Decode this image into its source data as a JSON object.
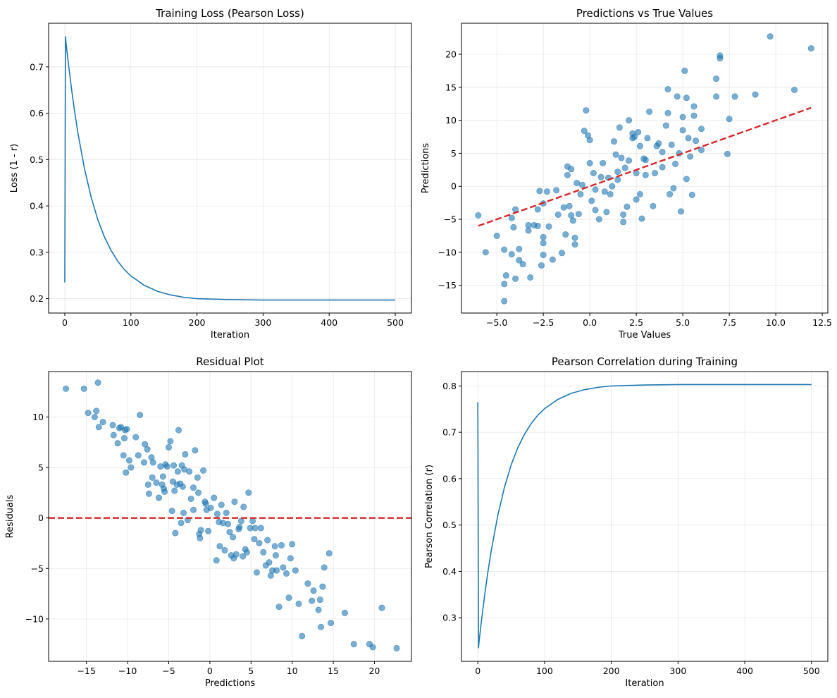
{
  "chart_data": [
    {
      "type": "line",
      "title": "Training Loss (Pearson Loss)",
      "xlabel": "Iteration",
      "ylabel": "Loss (1 - r)",
      "xlim": [
        -24.5,
        524.5
      ],
      "ylim": [
        0.169,
        0.794
      ],
      "xticks": [
        0,
        100,
        200,
        300,
        400,
        500
      ],
      "yticks": [
        0.2,
        0.3,
        0.4,
        0.5,
        0.6,
        0.7
      ],
      "xtick_labels": [
        "0",
        "100",
        "200",
        "300",
        "400",
        "500"
      ],
      "ytick_labels": [
        "0.2",
        "0.3",
        "0.4",
        "0.5",
        "0.6",
        "0.7"
      ],
      "grid": true,
      "series": [
        {
          "color": "#1f77b4",
          "x": [
            0,
            1,
            2,
            5,
            10,
            15,
            20,
            30,
            40,
            50,
            60,
            70,
            80,
            90,
            100,
            120,
            140,
            160,
            180,
            200,
            250,
            300,
            350,
            400,
            450,
            500
          ],
          "y": [
            0.235,
            0.765,
            0.75,
            0.712,
            0.654,
            0.602,
            0.556,
            0.479,
            0.418,
            0.37,
            0.333,
            0.304,
            0.281,
            0.263,
            0.249,
            0.229,
            0.216,
            0.208,
            0.203,
            0.2,
            0.198,
            0.197,
            0.197,
            0.197,
            0.197,
            0.197
          ]
        }
      ]
    },
    {
      "type": "scatter",
      "title": "Predictions vs True Values",
      "xlabel": "True Values",
      "ylabel": "Predictions",
      "xlim": [
        -6.9,
        12.8
      ],
      "ylim": [
        -19.2,
        24.7
      ],
      "xticks": [
        -5.0,
        -2.5,
        0.0,
        2.5,
        5.0,
        7.5,
        10.0,
        12.5
      ],
      "yticks": [
        -15,
        -10,
        -5,
        0,
        5,
        10,
        15,
        20
      ],
      "xtick_labels": [
        "−5.0",
        "−2.5",
        "0.0",
        "2.5",
        "5.0",
        "7.5",
        "10.0",
        "12.5"
      ],
      "ytick_labels": [
        "−15",
        "−10",
        "−5",
        "0",
        "5",
        "10",
        "15",
        "20"
      ],
      "grid": true,
      "point_color": "#1f77b4",
      "reference_line": {
        "x": [
          -6.0,
          11.9
        ],
        "y": [
          -6.0,
          11.9
        ],
        "color": "#d62728",
        "style": "dashed"
      },
      "points": [
        [
          -6.0,
          -4.4
        ],
        [
          -5.6,
          -10.0
        ],
        [
          -5.0,
          -7.5
        ],
        [
          -4.6,
          -9.6
        ],
        [
          -4.5,
          -13.5
        ],
        [
          -4.6,
          -14.8
        ],
        [
          -4.6,
          -17.4
        ],
        [
          -4.2,
          -10.3
        ],
        [
          -4.1,
          -6.2
        ],
        [
          -4.2,
          -4.8
        ],
        [
          -4.0,
          -3.5
        ],
        [
          -4.0,
          -14.0
        ],
        [
          -3.8,
          -9.5
        ],
        [
          -3.8,
          -11.2
        ],
        [
          -3.6,
          -11.8
        ],
        [
          -3.3,
          -6.7
        ],
        [
          -3.3,
          -5.9
        ],
        [
          -3.2,
          -13.8
        ],
        [
          -3.0,
          -5.9
        ],
        [
          -2.8,
          -6.0
        ],
        [
          -2.8,
          -3.5
        ],
        [
          -2.7,
          -0.7
        ],
        [
          -2.6,
          -12.0
        ],
        [
          -2.5,
          -2.6
        ],
        [
          -2.5,
          -7.7
        ],
        [
          -2.5,
          -8.6
        ],
        [
          -2.5,
          -10.4
        ],
        [
          -2.3,
          -0.8
        ],
        [
          -2.2,
          -6.1
        ],
        [
          -2.0,
          -11.1
        ],
        [
          -1.8,
          -0.6
        ],
        [
          -1.7,
          -4.3
        ],
        [
          -1.5,
          -10.1
        ],
        [
          -1.4,
          -3.2
        ],
        [
          -1.3,
          -7.3
        ],
        [
          -1.2,
          1.7
        ],
        [
          -1.2,
          3.0
        ],
        [
          -1.0,
          2.6
        ],
        [
          -1.0,
          -4.4
        ],
        [
          -0.9,
          -5.2
        ],
        [
          -0.8,
          -7.8
        ],
        [
          -0.8,
          -8.8
        ],
        [
          -0.7,
          0.5
        ],
        [
          -0.6,
          -4.2
        ],
        [
          -0.5,
          -1.2
        ],
        [
          -0.3,
          8.4
        ],
        [
          -0.2,
          11.5
        ],
        [
          -0.1,
          7.7
        ],
        [
          0.0,
          7.0
        ],
        [
          0.0,
          3.5
        ],
        [
          0.1,
          -2.2
        ],
        [
          0.2,
          2.0
        ],
        [
          0.3,
          -3.6
        ],
        [
          0.5,
          -5.0
        ],
        [
          0.7,
          3.5
        ],
        [
          0.8,
          -0.8
        ],
        [
          0.9,
          -3.9
        ],
        [
          1.0,
          1.3
        ],
        [
          1.1,
          -1.2
        ],
        [
          1.2,
          0.0
        ],
        [
          1.3,
          6.8
        ],
        [
          1.4,
          4.8
        ],
        [
          1.5,
          1.0
        ],
        [
          1.6,
          8.9
        ],
        [
          1.7,
          4.3
        ],
        [
          1.8,
          -4.3
        ],
        [
          1.8,
          -5.4
        ],
        [
          1.9,
          2.8
        ],
        [
          2.0,
          -3.1
        ],
        [
          2.1,
          3.9
        ],
        [
          2.1,
          10.0
        ],
        [
          2.3,
          7.3
        ],
        [
          2.3,
          8.0
        ],
        [
          2.4,
          7.5
        ],
        [
          2.5,
          2.0
        ],
        [
          2.5,
          -2.0
        ],
        [
          2.6,
          8.2
        ],
        [
          2.7,
          6.1
        ],
        [
          2.7,
          -1.2
        ],
        [
          2.8,
          -4.9
        ],
        [
          3.0,
          1.7
        ],
        [
          3.0,
          4.0
        ],
        [
          3.1,
          7.3
        ],
        [
          3.2,
          11.3
        ],
        [
          3.4,
          -3.0
        ],
        [
          3.5,
          2.0
        ],
        [
          3.7,
          6.5
        ],
        [
          3.9,
          2.9
        ],
        [
          3.9,
          5.2
        ],
        [
          4.1,
          9.2
        ],
        [
          4.2,
          14.7
        ],
        [
          4.2,
          11.1
        ],
        [
          4.3,
          -1.2
        ],
        [
          4.4,
          6.3
        ],
        [
          4.5,
          -0.3
        ],
        [
          4.6,
          3.4
        ],
        [
          4.7,
          13.6
        ],
        [
          4.8,
          5.0
        ],
        [
          4.9,
          -3.8
        ],
        [
          5.0,
          8.5
        ],
        [
          5.0,
          10.5
        ],
        [
          5.1,
          17.5
        ],
        [
          5.2,
          1.1
        ],
        [
          5.2,
          13.4
        ],
        [
          5.3,
          7.3
        ],
        [
          5.4,
          4.5
        ],
        [
          5.5,
          -1.3
        ],
        [
          5.6,
          12.1
        ],
        [
          5.6,
          10.7
        ],
        [
          5.7,
          6.9
        ],
        [
          6.0,
          8.7
        ],
        [
          6.0,
          5.5
        ],
        [
          6.8,
          13.6
        ],
        [
          6.8,
          16.3
        ],
        [
          7.0,
          19.8
        ],
        [
          7.0,
          19.4
        ],
        [
          7.4,
          4.9
        ],
        [
          7.5,
          10.2
        ],
        [
          7.8,
          13.6
        ],
        [
          8.9,
          13.9
        ],
        [
          9.7,
          22.7
        ],
        [
          11.0,
          14.6
        ],
        [
          11.9,
          20.9
        ],
        [
          0.6,
          1.4
        ],
        [
          -0.4,
          0.2
        ],
        [
          1.5,
          2.2
        ],
        [
          2.9,
          4.2
        ],
        [
          3.6,
          6.1
        ],
        [
          -1.1,
          -3.0
        ],
        [
          0.3,
          -0.5
        ]
      ]
    },
    {
      "type": "scatter",
      "title": "Residual Plot",
      "xlabel": "Predictions",
      "ylabel": "Residuals",
      "xlim": [
        -19.6,
        24.5
      ],
      "ylim": [
        -14.2,
        14.5
      ],
      "xticks": [
        -15,
        -10,
        -5,
        0,
        5,
        10,
        15,
        20
      ],
      "yticks": [
        -10,
        -5,
        0,
        5,
        10
      ],
      "xtick_labels": [
        "−15",
        "−10",
        "−5",
        "0",
        "5",
        "10",
        "15",
        "20"
      ],
      "ytick_labels": [
        "−10",
        "−5",
        "0",
        "5",
        "10"
      ],
      "grid": true,
      "point_color": "#1f77b4",
      "reference_line": {
        "y": 0,
        "color": "#d62728",
        "style": "dashed"
      },
      "points": [
        [
          -17.5,
          12.8
        ],
        [
          -15.3,
          12.8
        ],
        [
          -14.8,
          10.4
        ],
        [
          -14.0,
          10.0
        ],
        [
          -13.8,
          10.6
        ],
        [
          -13.6,
          13.4
        ],
        [
          -13.5,
          9.0
        ],
        [
          -11.8,
          9.2
        ],
        [
          -11.7,
          8.2
        ],
        [
          -11.2,
          7.4
        ],
        [
          -11.0,
          8.9
        ],
        [
          -10.8,
          9.0
        ],
        [
          -10.5,
          6.2
        ],
        [
          -10.4,
          7.9
        ],
        [
          -10.3,
          8.7
        ],
        [
          -10.2,
          4.5
        ],
        [
          -10.1,
          8.8
        ],
        [
          -9.8,
          5.7
        ],
        [
          -9.6,
          5.0
        ],
        [
          -9.0,
          8.0
        ],
        [
          -8.7,
          6.2
        ],
        [
          -8.5,
          10.2
        ],
        [
          -8.0,
          5.5
        ],
        [
          -7.9,
          7.3
        ],
        [
          -7.6,
          6.8
        ],
        [
          -7.5,
          3.3
        ],
        [
          -7.4,
          2.4
        ],
        [
          -7.1,
          6.0
        ],
        [
          -6.9,
          5.5
        ],
        [
          -6.5,
          3.5
        ],
        [
          -6.2,
          2.0
        ],
        [
          -6.0,
          5.1
        ],
        [
          -5.8,
          3.3
        ],
        [
          -5.7,
          4.1
        ],
        [
          -5.6,
          2.9
        ],
        [
          -5.5,
          2.6
        ],
        [
          -5.4,
          5.3
        ],
        [
          -5.2,
          5.1
        ],
        [
          -5.0,
          7.0
        ],
        [
          -4.8,
          7.6
        ],
        [
          -4.6,
          0.7
        ],
        [
          -4.5,
          3.6
        ],
        [
          -4.4,
          5.2
        ],
        [
          -4.3,
          2.7
        ],
        [
          -4.2,
          -1.5
        ],
        [
          -4.0,
          3.3
        ],
        [
          -3.9,
          4.6
        ],
        [
          -3.8,
          8.7
        ],
        [
          -3.6,
          3.4
        ],
        [
          -3.5,
          -0.5
        ],
        [
          -3.4,
          5.2
        ],
        [
          -3.3,
          3.1
        ],
        [
          -3.2,
          0.5
        ],
        [
          -3.1,
          4.8
        ],
        [
          -3.0,
          6.3
        ],
        [
          -2.7,
          -0.2
        ],
        [
          -2.5,
          4.6
        ],
        [
          -2.3,
          1.9
        ],
        [
          -2.0,
          0.8
        ],
        [
          -1.8,
          6.7
        ],
        [
          -1.5,
          4.0
        ],
        [
          -1.4,
          2.5
        ],
        [
          -1.3,
          -1.6
        ],
        [
          -1.2,
          -2.0
        ],
        [
          -1.1,
          -1.2
        ],
        [
          -0.8,
          4.7
        ],
        [
          -0.6,
          1.6
        ],
        [
          -0.5,
          1.4
        ],
        [
          -0.4,
          0.8
        ],
        [
          -0.2,
          -1.3
        ],
        [
          0.5,
          2.0
        ],
        [
          0.8,
          -4.2
        ],
        [
          0.9,
          0.4
        ],
        [
          1.1,
          -0.4
        ],
        [
          1.2,
          -2.8
        ],
        [
          1.4,
          1.3
        ],
        [
          1.6,
          -0.5
        ],
        [
          1.8,
          -3.2
        ],
        [
          2.0,
          0.5
        ],
        [
          2.2,
          -0.6
        ],
        [
          2.4,
          -1.4
        ],
        [
          2.6,
          -3.7
        ],
        [
          2.9,
          -4.0
        ],
        [
          3.0,
          1.6
        ],
        [
          3.2,
          -3.6
        ],
        [
          3.5,
          -1.1
        ],
        [
          3.8,
          -0.3
        ],
        [
          4.0,
          -3.8
        ],
        [
          4.1,
          1.1
        ],
        [
          4.3,
          -3.1
        ],
        [
          4.5,
          -3.4
        ],
        [
          4.7,
          2.5
        ],
        [
          4.9,
          -1.0
        ],
        [
          5.2,
          -0.3
        ],
        [
          5.4,
          -2.1
        ],
        [
          5.7,
          -5.4
        ],
        [
          6.0,
          -2.5
        ],
        [
          6.2,
          -1.0
        ],
        [
          6.5,
          -3.4
        ],
        [
          6.8,
          -4.7
        ],
        [
          7.0,
          -2.2
        ],
        [
          7.2,
          -4.4
        ],
        [
          7.4,
          -5.7
        ],
        [
          7.6,
          -5.2
        ],
        [
          7.9,
          -2.8
        ],
        [
          8.1,
          -5.2
        ],
        [
          8.4,
          -8.8
        ],
        [
          8.7,
          -2.7
        ],
        [
          8.9,
          -4.9
        ],
        [
          9.3,
          -5.5
        ],
        [
          9.6,
          -7.9
        ],
        [
          10.0,
          -2.6
        ],
        [
          10.4,
          -5.2
        ],
        [
          10.8,
          -8.5
        ],
        [
          11.2,
          -11.7
        ],
        [
          11.9,
          -6.5
        ],
        [
          12.6,
          -7.2
        ],
        [
          13.2,
          -9.1
        ],
        [
          13.4,
          -8.1
        ],
        [
          13.5,
          -10.8
        ],
        [
          13.7,
          -6.8
        ],
        [
          13.9,
          -4.9
        ],
        [
          14.5,
          -3.5
        ],
        [
          14.7,
          -10.4
        ],
        [
          16.4,
          -9.4
        ],
        [
          17.5,
          -12.5
        ],
        [
          19.4,
          -12.5
        ],
        [
          19.8,
          -12.8
        ],
        [
          20.9,
          -8.9
        ],
        [
          22.7,
          -12.9
        ],
        [
          -13.0,
          9.5
        ],
        [
          -7.0,
          4.0
        ],
        [
          -2.0,
          3.0
        ],
        [
          0.1,
          1.0
        ],
        [
          2.8,
          -1.9
        ],
        [
          5.5,
          -1.0
        ],
        [
          8.0,
          -3.7
        ],
        [
          9.8,
          -4.0
        ],
        [
          12.4,
          -8.2
        ],
        [
          3.6,
          -0.9
        ]
      ]
    },
    {
      "type": "line",
      "title": "Pearson Correlation during Training",
      "xlabel": "Iteration",
      "ylabel": "Pearson Correlation (r)",
      "xlim": [
        -24.5,
        524.5
      ],
      "ylim": [
        0.206,
        0.831
      ],
      "xticks": [
        0,
        100,
        200,
        300,
        400,
        500
      ],
      "yticks": [
        0.3,
        0.4,
        0.5,
        0.6,
        0.7,
        0.8
      ],
      "xtick_labels": [
        "0",
        "100",
        "200",
        "300",
        "400",
        "500"
      ],
      "ytick_labels": [
        "0.3",
        "0.4",
        "0.5",
        "0.6",
        "0.7",
        "0.8"
      ],
      "grid": true,
      "series": [
        {
          "color": "#1f77b4",
          "x": [
            0,
            1,
            2,
            5,
            10,
            15,
            20,
            30,
            40,
            50,
            60,
            70,
            80,
            90,
            100,
            120,
            140,
            160,
            180,
            200,
            250,
            300,
            350,
            400,
            450,
            500
          ],
          "y": [
            0.765,
            0.235,
            0.25,
            0.288,
            0.346,
            0.398,
            0.444,
            0.521,
            0.582,
            0.63,
            0.667,
            0.696,
            0.719,
            0.737,
            0.751,
            0.771,
            0.784,
            0.792,
            0.797,
            0.8,
            0.802,
            0.803,
            0.803,
            0.803,
            0.803,
            0.803
          ]
        }
      ]
    }
  ]
}
